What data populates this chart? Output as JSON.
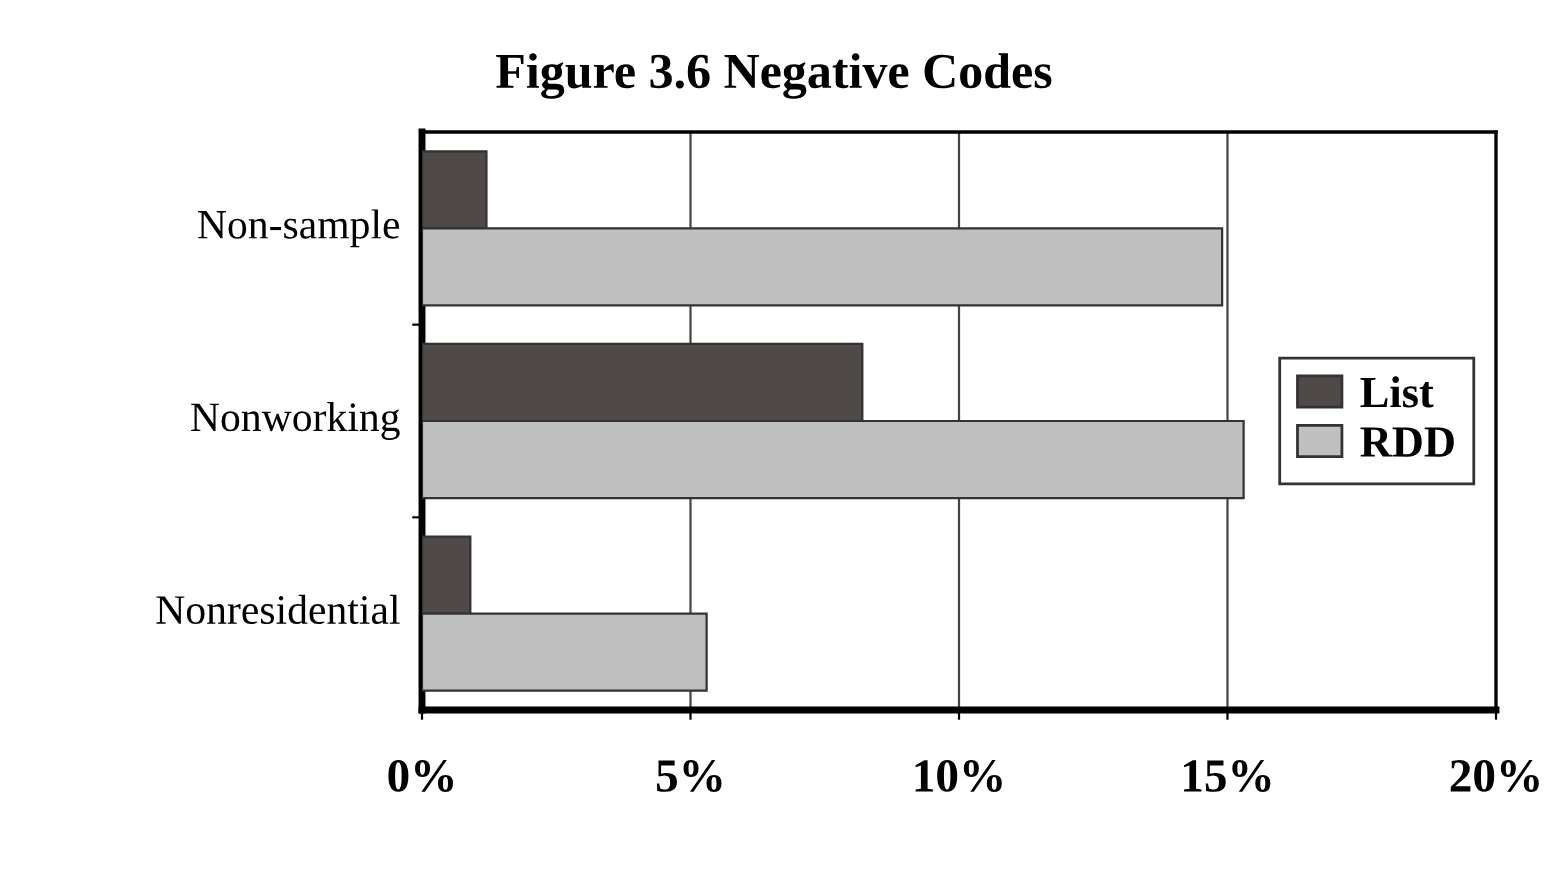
{
  "chart_data": {
    "type": "bar",
    "orientation": "horizontal",
    "title": "Figure 3.6 Negative Codes",
    "categories": [
      "Non-sample",
      "Nonworking",
      "Nonresidential"
    ],
    "series": [
      {
        "name": "List",
        "color": "#4f4a47",
        "values": [
          1.2,
          8.2,
          0.9
        ]
      },
      {
        "name": "RDD",
        "color": "#c0c0c0",
        "values": [
          14.9,
          15.3,
          5.3
        ]
      }
    ],
    "xlim": [
      0,
      20
    ],
    "xticks": [
      {
        "value": 0,
        "label": "0%"
      },
      {
        "value": 5,
        "label": "5%"
      },
      {
        "value": 10,
        "label": "10%"
      },
      {
        "value": 15,
        "label": "15%"
      },
      {
        "value": 20,
        "label": "20%"
      }
    ],
    "grid": "x",
    "legend": "right"
  }
}
